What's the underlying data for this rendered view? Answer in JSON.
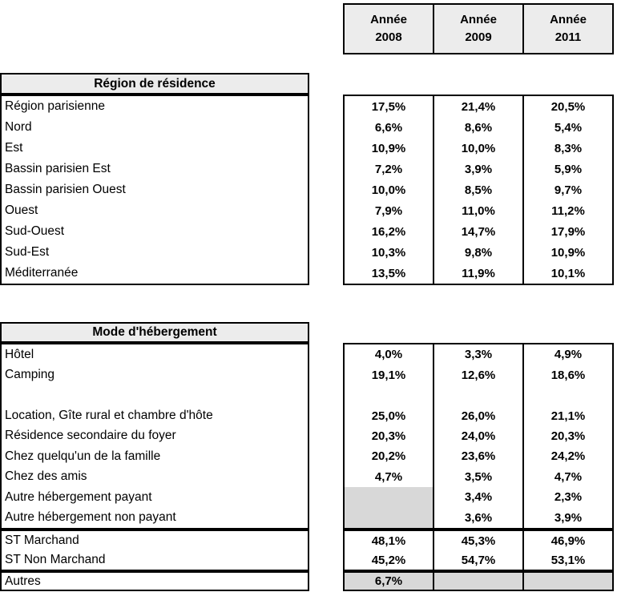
{
  "colors": {
    "header_bg": "#ececec",
    "blank_cell_bg": "#d8d8d8",
    "border": "#000000",
    "text": "#000000",
    "page_bg": "#ffffff"
  },
  "year_header": {
    "columns": [
      {
        "line1": "Année",
        "line2": "2008"
      },
      {
        "line1": "Année",
        "line2": "2009"
      },
      {
        "line1": "Année",
        "line2": "2011"
      }
    ]
  },
  "sections": [
    {
      "id": "region",
      "title": "Région de résidence",
      "rows": [
        {
          "label": "Région parisienne",
          "values": [
            "17,5%",
            "21,4%",
            "20,5%"
          ],
          "gray": [
            false,
            false,
            false
          ]
        },
        {
          "label": "Nord",
          "values": [
            "6,6%",
            "8,6%",
            "5,4%"
          ],
          "gray": [
            false,
            false,
            false
          ]
        },
        {
          "label": "Est",
          "values": [
            "10,9%",
            "10,0%",
            "8,3%"
          ],
          "gray": [
            false,
            false,
            false
          ]
        },
        {
          "label": "Bassin parisien Est",
          "values": [
            "7,2%",
            "3,9%",
            "5,9%"
          ],
          "gray": [
            false,
            false,
            false
          ]
        },
        {
          "label": "Bassin parisien Ouest",
          "values": [
            "10,0%",
            "8,5%",
            "9,7%"
          ],
          "gray": [
            false,
            false,
            false
          ]
        },
        {
          "label": "Ouest",
          "values": [
            "7,9%",
            "11,0%",
            "11,2%"
          ],
          "gray": [
            false,
            false,
            false
          ]
        },
        {
          "label": "Sud-Ouest",
          "values": [
            "16,2%",
            "14,7%",
            "17,9%"
          ],
          "gray": [
            false,
            false,
            false
          ]
        },
        {
          "label": "Sud-Est",
          "values": [
            "10,3%",
            "9,8%",
            "10,9%"
          ],
          "gray": [
            false,
            false,
            false
          ]
        },
        {
          "label": "Méditerranée",
          "values": [
            "13,5%",
            "11,9%",
            "10,1%"
          ],
          "gray": [
            false,
            false,
            false
          ]
        }
      ]
    },
    {
      "id": "hebergement",
      "title": "Mode d'hébergement",
      "rows": [
        {
          "label": "Hôtel",
          "values": [
            "4,0%",
            "3,3%",
            "4,9%"
          ],
          "gray": [
            false,
            false,
            false
          ]
        },
        {
          "label": "Camping",
          "values": [
            "19,1%",
            "12,6%",
            "18,6%"
          ],
          "gray": [
            false,
            false,
            false
          ]
        },
        {
          "label": "",
          "values": [
            "",
            "",
            ""
          ],
          "gray": [
            false,
            false,
            false
          ]
        },
        {
          "label": "Location, Gîte rural et chambre d'hôte",
          "values": [
            "25,0%",
            "26,0%",
            "21,1%"
          ],
          "gray": [
            false,
            false,
            false
          ]
        },
        {
          "label": "Résidence secondaire du foyer",
          "values": [
            "20,3%",
            "24,0%",
            "20,3%"
          ],
          "gray": [
            false,
            false,
            false
          ]
        },
        {
          "label": "Chez quelqu'un de la famille",
          "values": [
            "20,2%",
            "23,6%",
            "24,2%"
          ],
          "gray": [
            false,
            false,
            false
          ]
        },
        {
          "label": "Chez des amis",
          "values": [
            "4,7%",
            "3,5%",
            "4,7%"
          ],
          "gray": [
            false,
            false,
            false
          ]
        },
        {
          "label": "Autre hébergement payant",
          "values": [
            "",
            "3,4%",
            "2,3%"
          ],
          "gray": [
            true,
            false,
            false
          ]
        },
        {
          "label": "Autre hébergement non payant",
          "values": [
            "",
            "3,6%",
            "3,9%"
          ],
          "gray": [
            true,
            false,
            false
          ]
        }
      ]
    },
    {
      "id": "subtotals",
      "title": null,
      "rows": [
        {
          "label": "ST Marchand",
          "values": [
            "48,1%",
            "45,3%",
            "46,9%"
          ],
          "gray": [
            false,
            false,
            false
          ]
        },
        {
          "label": "ST Non Marchand",
          "values": [
            "45,2%",
            "54,7%",
            "53,1%"
          ],
          "gray": [
            false,
            false,
            false
          ]
        }
      ]
    },
    {
      "id": "autres",
      "title": null,
      "rows": [
        {
          "label": "Autres",
          "values": [
            "6,7%",
            "",
            ""
          ],
          "gray": [
            true,
            true,
            true
          ]
        }
      ]
    }
  ]
}
